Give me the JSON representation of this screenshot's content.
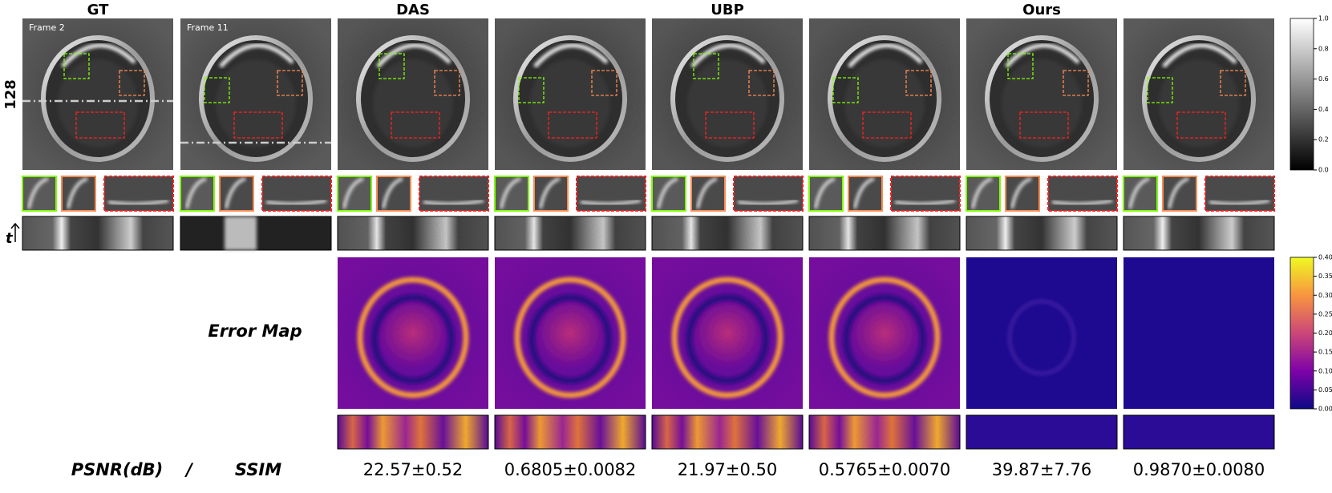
{
  "columns": [
    {
      "title": "GT"
    },
    {
      "title": "DAS"
    },
    {
      "title": "UBP"
    },
    {
      "title": "Ours"
    }
  ],
  "row_label": "128",
  "frames": [
    "Frame 2",
    "Frame 11"
  ],
  "time_label": "t",
  "error_label": "Error Map",
  "colorbar_gray": {
    "ticks": [
      "0.0",
      "0.2",
      "0.4",
      "0.6",
      "0.8",
      "1.0"
    ]
  },
  "colorbar_error": {
    "ticks": [
      "0.00",
      "0.05",
      "0.10",
      "0.15",
      "0.20",
      "0.25",
      "0.30",
      "0.35",
      "0.40"
    ]
  },
  "metrics": {
    "labels": [
      "PSNR(dB)",
      "/",
      "SSIM"
    ],
    "values": [
      "22.57±0.52",
      "0.6805±0.0082",
      "21.97±0.50",
      "0.5765±0.0070",
      "39.87±7.76",
      "0.9870±0.0080"
    ]
  }
}
